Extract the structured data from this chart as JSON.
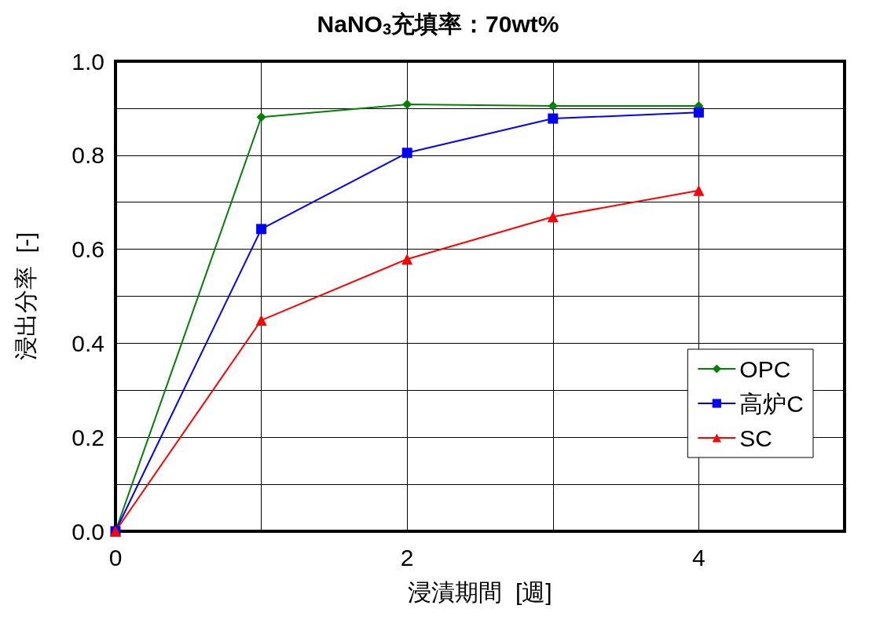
{
  "chart_data": {
    "type": "line",
    "title": "NaNO$_{3}$充填率：70wt%",
    "xlabel": "浸漬期間  [週]",
    "ylabel": "浸出分率  [-]",
    "x": [
      0,
      1,
      2,
      3,
      4
    ],
    "series": [
      {
        "name": "OPC",
        "color": "#008000",
        "marker": "diamond",
        "values": [
          0,
          0.881,
          0.908,
          0.905,
          0.905
        ]
      },
      {
        "name": "高炉C",
        "color": "#0000ff",
        "marker": "square",
        "values": [
          0,
          0.643,
          0.805,
          0.878,
          0.891
        ]
      },
      {
        "name": "SC",
        "color": "#ff0000",
        "marker": "triangle",
        "values": [
          0,
          0.449,
          0.579,
          0.669,
          0.725
        ]
      }
    ],
    "xlim": [
      0,
      5
    ],
    "xticks": [
      0,
      {
        "value": 1,
        "label": null
      },
      2,
      {
        "value": 3,
        "label": null
      },
      4,
      {
        "value": 5,
        "label": null
      }
    ],
    "ylim": [
      0,
      1
    ],
    "yticks": [
      {
        "value": 0,
        "label": "0.0"
      },
      {
        "value": 0.1,
        "label": null
      },
      {
        "value": 0.2,
        "label": "0.2"
      },
      {
        "value": 0.3,
        "label": null
      },
      {
        "value": 0.4,
        "label": "0.4"
      },
      {
        "value": 0.5,
        "label": null
      },
      {
        "value": 0.6,
        "label": "0.6"
      },
      {
        "value": 0.7,
        "label": null
      },
      {
        "value": 0.8,
        "label": "0.8"
      },
      {
        "value": 0.9,
        "label": null
      },
      {
        "value": 1,
        "label": "1.0"
      }
    ],
    "grid": true,
    "legend": "right",
    "line_style": "solid"
  }
}
